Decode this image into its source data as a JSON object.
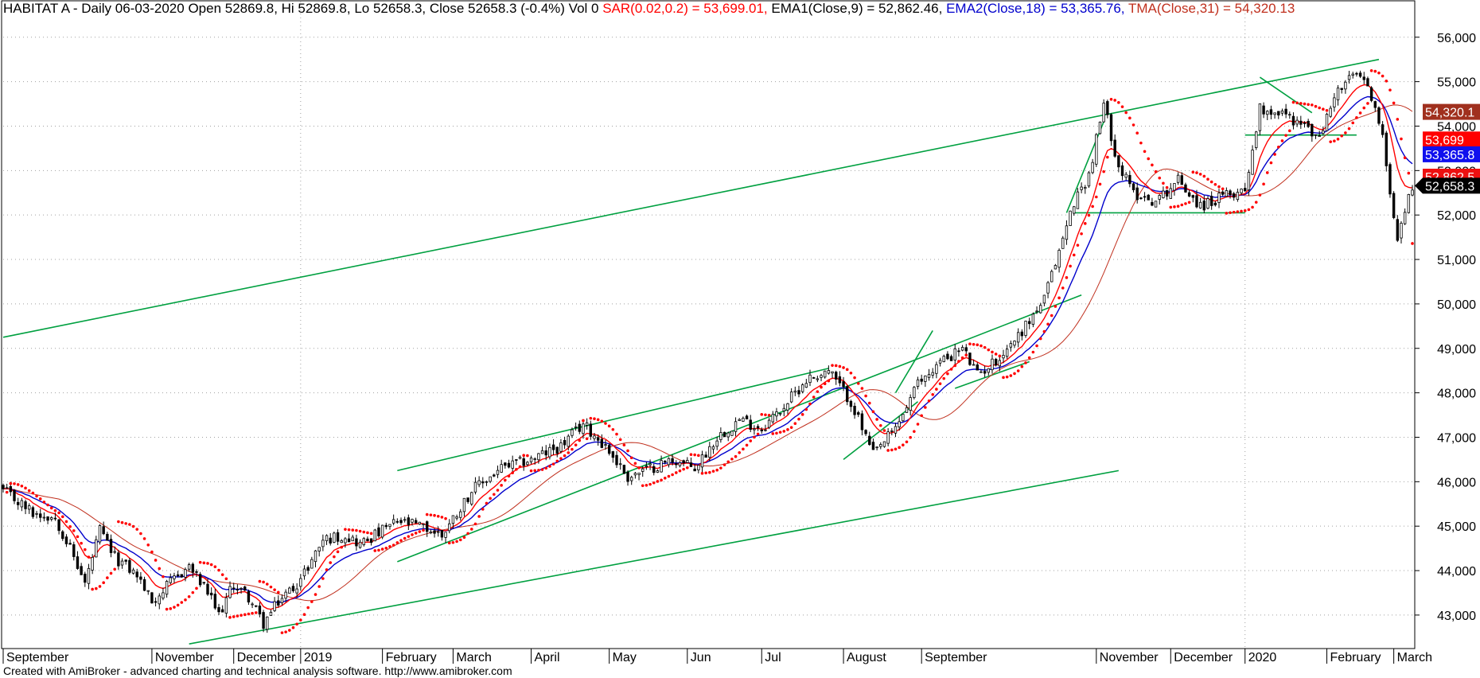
{
  "header": {
    "prefix": "HABITAT A - Daily 06-03-2020 Open 52869.8, Hi 52869.8, Lo 52658.3, Close 52658.3 (-0.4%) Vol 0 ",
    "sar": "SAR(0.02,0.2) = 53,699.01,",
    "ema1": " EMA1(Close,9) = 52,862.46,",
    "ema2": " EMA2(Close,18) = 53,365.76,",
    "tma": " TMA(Close,31) = 54,320.13"
  },
  "footer": "Created with AmiBroker - advanced charting and technical analysis software. http://www.amibroker.com",
  "colors": {
    "background": "#ffffff",
    "candle_up": "#ffffff",
    "candle_down": "#000000",
    "sar": "#ff0000",
    "ema1": "#ff0000",
    "ema2": "#0000cc",
    "tma": "#c0301e",
    "trendline": "#00a040",
    "grid": "#a0a0a0"
  },
  "chart_data": {
    "type": "candlestick",
    "title": "HABITAT A - Daily",
    "y_axis": {
      "ticks": [
        "43,000",
        "44,000",
        "45,000",
        "46,000",
        "47,000",
        "48,000",
        "49,000",
        "50,000",
        "51,000",
        "52,000",
        "53,000",
        "54,000",
        "55,000",
        "56,000"
      ],
      "tick_values": [
        43000,
        44000,
        45000,
        46000,
        47000,
        48000,
        49000,
        50000,
        51000,
        52000,
        53000,
        54000,
        55000,
        56000
      ],
      "ylim": [
        42300,
        56300
      ]
    },
    "x_axis": {
      "labels": [
        "September",
        "November",
        "December",
        "2019",
        "February",
        "March",
        "April",
        "May",
        "Jun",
        "Jul",
        "August",
        "September",
        "November",
        "December",
        "2020",
        "February",
        "March"
      ],
      "label_day_index": [
        0,
        40,
        62,
        80,
        102,
        121,
        142,
        163,
        184,
        204,
        226,
        247,
        294,
        314,
        334,
        356,
        374
      ],
      "vertical_grid_day_index": [
        80,
        334
      ],
      "total_days": 380
    },
    "close_path": [
      [
        0,
        45800
      ],
      [
        8,
        45300
      ],
      [
        14,
        45200
      ],
      [
        18,
        44500
      ],
      [
        22,
        43700
      ],
      [
        26,
        44900
      ],
      [
        30,
        44300
      ],
      [
        36,
        43900
      ],
      [
        40,
        43300
      ],
      [
        46,
        43800
      ],
      [
        50,
        44100
      ],
      [
        55,
        43500
      ],
      [
        58,
        43000
      ],
      [
        62,
        43700
      ],
      [
        66,
        43400
      ],
      [
        70,
        42800
      ],
      [
        74,
        43300
      ],
      [
        80,
        43800
      ],
      [
        86,
        44700
      ],
      [
        92,
        44800
      ],
      [
        96,
        44600
      ],
      [
        100,
        44800
      ],
      [
        106,
        45100
      ],
      [
        112,
        45000
      ],
      [
        118,
        44800
      ],
      [
        126,
        45800
      ],
      [
        134,
        46300
      ],
      [
        142,
        46500
      ],
      [
        150,
        46800
      ],
      [
        156,
        47300
      ],
      [
        162,
        46800
      ],
      [
        168,
        46100
      ],
      [
        174,
        46300
      ],
      [
        180,
        46500
      ],
      [
        186,
        46300
      ],
      [
        192,
        47000
      ],
      [
        198,
        47400
      ],
      [
        204,
        47200
      ],
      [
        210,
        47700
      ],
      [
        216,
        48300
      ],
      [
        222,
        48500
      ],
      [
        228,
        47800
      ],
      [
        234,
        46600
      ],
      [
        240,
        47200
      ],
      [
        246,
        48200
      ],
      [
        252,
        48700
      ],
      [
        258,
        49000
      ],
      [
        262,
        48400
      ],
      [
        268,
        48800
      ],
      [
        274,
        49400
      ],
      [
        280,
        50100
      ],
      [
        284,
        51200
      ],
      [
        288,
        52300
      ],
      [
        292,
        52900
      ],
      [
        296,
        54500
      ],
      [
        300,
        53100
      ],
      [
        304,
        52500
      ],
      [
        310,
        52300
      ],
      [
        316,
        52800
      ],
      [
        322,
        52200
      ],
      [
        328,
        52400
      ],
      [
        334,
        52600
      ],
      [
        338,
        54400
      ],
      [
        344,
        54300
      ],
      [
        350,
        54000
      ],
      [
        354,
        53700
      ],
      [
        358,
        54700
      ],
      [
        364,
        55200
      ],
      [
        368,
        54700
      ],
      [
        371,
        53700
      ],
      [
        373,
        52600
      ],
      [
        375,
        51500
      ],
      [
        377,
        52100
      ],
      [
        379,
        52658
      ]
    ],
    "series": [
      {
        "name": "SAR(0.02,0.2)",
        "last": 53699.01
      },
      {
        "name": "EMA1(Close,9)",
        "last": 52862.46
      },
      {
        "name": "EMA2(Close,18)",
        "last": 53365.76
      },
      {
        "name": "TMA(Close,31)",
        "last": 54320.13
      }
    ],
    "price_labels": [
      {
        "text": "54,320.1",
        "value": 54320.13,
        "color": "#a0301e"
      },
      {
        "text": "53,699",
        "value": 53699.01,
        "color": "#ff0000"
      },
      {
        "text": "53,365.8",
        "value": 53365.76,
        "color": "#1010ee"
      },
      {
        "text": "52,862.5",
        "value": 52862.46,
        "color": "#ee1010"
      },
      {
        "text": "52,658.3",
        "value": 52658.3,
        "color": "#000000"
      }
    ],
    "trendlines": [
      {
        "from": [
          0,
          49250
        ],
        "to": [
          370,
          55500
        ]
      },
      {
        "from": [
          50,
          42350
        ],
        "to": [
          300,
          46250
        ]
      },
      {
        "from": [
          106,
          46250
        ],
        "to": [
          222,
          48550
        ]
      },
      {
        "from": [
          106,
          44200
        ],
        "to": [
          290,
          50200
        ]
      },
      {
        "from": [
          226,
          46500
        ],
        "to": [
          246,
          47800
        ]
      },
      {
        "from": [
          240,
          48000
        ],
        "to": [
          250,
          49400
        ]
      },
      {
        "from": [
          256,
          48100
        ],
        "to": [
          276,
          48700
        ]
      },
      {
        "from": [
          286,
          52050
        ],
        "to": [
          296,
          54100
        ]
      },
      {
        "from": [
          288,
          52050
        ],
        "to": [
          334,
          52050
        ]
      },
      {
        "from": [
          334,
          53800
        ],
        "to": [
          364,
          53800
        ]
      },
      {
        "from": [
          338,
          55100
        ],
        "to": [
          352,
          54300
        ]
      }
    ]
  }
}
